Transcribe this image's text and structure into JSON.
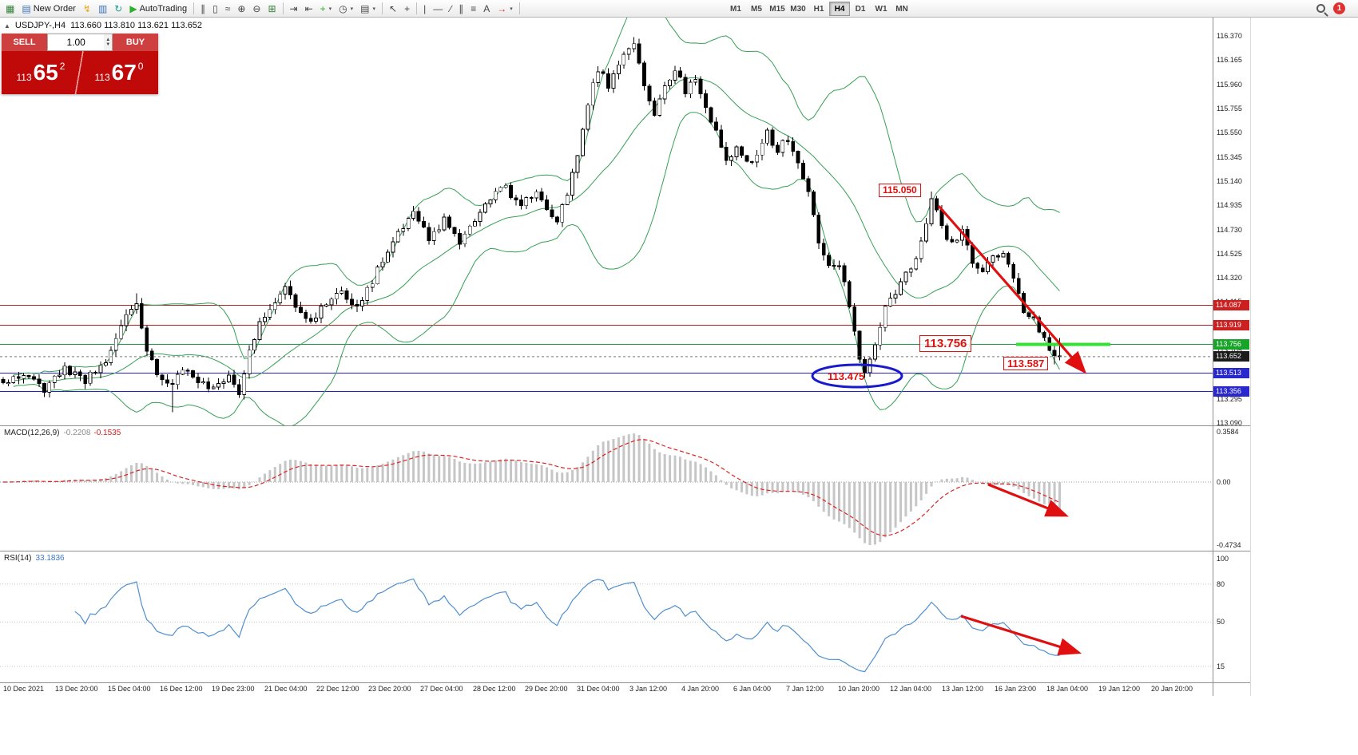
{
  "toolbar": {
    "buttons": [
      {
        "name": "chart-window-icon",
        "glyph": "▦",
        "color": "#2e7d32"
      },
      {
        "name": "new-order-button",
        "glyph": "▤",
        "color": "#3b6fb5",
        "label": "New Order"
      },
      {
        "name": "metaeditor-icon",
        "glyph": "↯",
        "color": "#e6a817"
      },
      {
        "name": "market-watch-icon",
        "glyph": "▥",
        "color": "#3b6fb5"
      },
      {
        "name": "strategy-tester-icon",
        "glyph": "↻",
        "color": "#1e9e8e"
      },
      {
        "name": "autotrading-button",
        "glyph": "▶",
        "color": "#2eaf2e",
        "label": "AutoTrading"
      },
      {
        "type": "sep"
      },
      {
        "name": "bar-chart-icon",
        "glyph": "∥",
        "color": "#444"
      },
      {
        "name": "candlestick-chart-icon",
        "glyph": "▯",
        "color": "#444"
      },
      {
        "name": "line-chart-icon",
        "glyph": "≈",
        "color": "#444"
      },
      {
        "name": "zoom-in-icon",
        "glyph": "⊕",
        "color": "#444"
      },
      {
        "name": "zoom-out-icon",
        "glyph": "⊖",
        "color": "#444"
      },
      {
        "name": "tile-windows-icon",
        "glyph": "⊞",
        "color": "#2e7d32"
      },
      {
        "type": "sep"
      },
      {
        "name": "auto-scroll-icon",
        "glyph": "⇥",
        "color": "#444"
      },
      {
        "name": "chart-shift-icon",
        "glyph": "⇤",
        "color": "#444"
      },
      {
        "name": "indicators-icon",
        "glyph": "+",
        "color": "#2eaf2e",
        "dropdown": true
      },
      {
        "name": "periods-icon",
        "glyph": "◷",
        "color": "#444",
        "dropdown": true
      },
      {
        "name": "templates-icon",
        "glyph": "▤",
        "color": "#444",
        "dropdown": true
      },
      {
        "type": "sep"
      },
      {
        "name": "cursor-icon",
        "glyph": "↖",
        "color": "#444"
      },
      {
        "name": "crosshair-icon",
        "glyph": "+",
        "color": "#444"
      },
      {
        "type": "sep"
      },
      {
        "name": "vertical-line-icon",
        "glyph": "|",
        "color": "#444"
      },
      {
        "name": "horizontal-line-icon",
        "glyph": "—",
        "color": "#444"
      },
      {
        "name": "trendline-icon",
        "glyph": "∕",
        "color": "#444"
      },
      {
        "name": "channel-icon",
        "glyph": "∥",
        "color": "#444"
      },
      {
        "name": "fibonacci-icon",
        "glyph": "≡",
        "color": "#444"
      },
      {
        "name": "text-icon",
        "glyph": "A",
        "color": "#444"
      },
      {
        "name": "arrows-icon",
        "glyph": "→",
        "color": "#cc3333",
        "dropdown": true
      },
      {
        "type": "sep"
      }
    ],
    "timeframes": [
      "M1",
      "M5",
      "M15",
      "M30",
      "H1",
      "H4",
      "D1",
      "W1",
      "MN"
    ],
    "active_timeframe": "H4",
    "notification_count": "1"
  },
  "chart": {
    "title_symbol": "USDJPY-,H4",
    "title_ohlc": "113.660 113.810 113.621 113.652"
  },
  "trade_panel": {
    "sell_label": "SELL",
    "buy_label": "BUY",
    "volume": "1.00",
    "sell_price": {
      "prefix": "113",
      "big": "65",
      "sup": "2"
    },
    "buy_price": {
      "prefix": "113",
      "big": "67",
      "sup": "0"
    }
  },
  "price_axis": {
    "labels": [
      {
        "text": "116.370",
        "price": 116.37
      },
      {
        "text": "116.165",
        "price": 116.165
      },
      {
        "text": "115.960",
        "price": 115.96
      },
      {
        "text": "115.755",
        "price": 115.755
      },
      {
        "text": "115.550",
        "price": 115.55
      },
      {
        "text": "115.345",
        "price": 115.345
      },
      {
        "text": "115.140",
        "price": 115.14
      },
      {
        "text": "114.935",
        "price": 114.935
      },
      {
        "text": "114.730",
        "price": 114.73
      },
      {
        "text": "114.525",
        "price": 114.525
      },
      {
        "text": "114.320",
        "price": 114.32
      },
      {
        "text": "114.115",
        "price": 114.115
      },
      {
        "text": "113.910",
        "price": 113.91
      },
      {
        "text": "113.705",
        "price": 113.705
      },
      {
        "text": "113.500",
        "price": 113.5
      },
      {
        "text": "113.295",
        "price": 113.295
      },
      {
        "text": "113.090",
        "price": 113.09
      }
    ],
    "tags": [
      {
        "text": "114.087",
        "price": 114.087,
        "color": "#cc2020"
      },
      {
        "text": "113.919",
        "price": 113.919,
        "color": "#cc2020"
      },
      {
        "text": "113.756",
        "price": 113.756,
        "color": "#18a428"
      },
      {
        "text": "113.652",
        "price": 113.652,
        "color": "#1b1b1b"
      },
      {
        "text": "113.513",
        "price": 113.513,
        "color": "#2828cc"
      },
      {
        "text": "113.356",
        "price": 113.356,
        "color": "#2828cc"
      }
    ]
  },
  "hlines": [
    {
      "price": 114.087,
      "color": "#b22222"
    },
    {
      "price": 113.919,
      "color": "#b22222"
    },
    {
      "price": 113.756,
      "color": "#229a4d"
    },
    {
      "price": 113.513,
      "color": "#2323c8"
    },
    {
      "price": 113.356,
      "color": "#2323c8"
    }
  ],
  "annotations": {
    "peak": {
      "text": "115.050"
    },
    "level": {
      "text": "113.756"
    },
    "low": {
      "text": "113.587"
    },
    "circled": {
      "text": "113.475"
    }
  },
  "macd": {
    "name": "MACD(12,26,9)",
    "main_value": "-0.2208",
    "signal_value": "-0.1535",
    "axis": [
      "0.3584",
      "0.00",
      "-0.4734"
    ]
  },
  "rsi": {
    "name": "RSI(14)",
    "value": "33.1836",
    "axis": [
      "100",
      "80",
      "50",
      "15"
    ]
  },
  "time_axis": [
    "10 Dec 2021",
    "13 Dec 20:00",
    "15 Dec 04:00",
    "16 Dec 12:00",
    "19 Dec 23:00",
    "21 Dec 04:00",
    "22 Dec 12:00",
    "23 Dec 20:00",
    "27 Dec 04:00",
    "28 Dec 12:00",
    "29 Dec 20:00",
    "31 Dec 04:00",
    "3 Jan 12:00",
    "4 Jan 20:00",
    "6 Jan 04:00",
    "7 Jan 12:00",
    "10 Jan 20:00",
    "12 Jan 04:00",
    "13 Jan 12:00",
    "16 Jan 23:00",
    "18 Jan 04:00",
    "19 Jan 12:00",
    "20 Jan 20:00"
  ],
  "chart_data": {
    "type": "candlestick",
    "symbol": "USDJPY",
    "timeframe": "H4",
    "visible_price_range": [
      113.09,
      116.37
    ],
    "last_candle": {
      "open": 113.66,
      "high": 113.81,
      "low": 113.621,
      "close": 113.652
    },
    "key_levels": {
      "resistance": [
        114.087,
        113.919
      ],
      "pivot": 113.756,
      "support": [
        113.513,
        113.356
      ]
    },
    "annotated_points": [
      {
        "label": "115.050",
        "type": "swing-high"
      },
      {
        "label": "113.756",
        "type": "level"
      },
      {
        "label": "113.587",
        "type": "swing-low"
      },
      {
        "label": "113.475",
        "type": "circled-low"
      }
    ],
    "candle_count": 207,
    "close_anchors": [
      [
        0,
        113.42
      ],
      [
        4,
        113.5
      ],
      [
        8,
        113.38
      ],
      [
        12,
        113.55
      ],
      [
        16,
        113.46
      ],
      [
        20,
        113.58
      ],
      [
        22,
        113.82
      ],
      [
        24,
        114.0
      ],
      [
        26,
        114.1
      ],
      [
        28,
        113.72
      ],
      [
        30,
        113.5
      ],
      [
        33,
        113.44
      ],
      [
        36,
        113.55
      ],
      [
        40,
        113.38
      ],
      [
        44,
        113.5
      ],
      [
        46,
        113.36
      ],
      [
        48,
        113.7
      ],
      [
        50,
        113.92
      ],
      [
        53,
        114.08
      ],
      [
        55,
        114.28
      ],
      [
        57,
        114.1
      ],
      [
        60,
        113.96
      ],
      [
        63,
        114.1
      ],
      [
        66,
        114.22
      ],
      [
        69,
        114.08
      ],
      [
        72,
        114.3
      ],
      [
        75,
        114.55
      ],
      [
        78,
        114.75
      ],
      [
        80,
        114.85
      ],
      [
        83,
        114.65
      ],
      [
        86,
        114.8
      ],
      [
        89,
        114.62
      ],
      [
        92,
        114.8
      ],
      [
        95,
        115.0
      ],
      [
        98,
        115.08
      ],
      [
        101,
        114.94
      ],
      [
        104,
        115.05
      ],
      [
        106,
        114.9
      ],
      [
        108,
        114.78
      ],
      [
        110,
        115.05
      ],
      [
        112,
        115.35
      ],
      [
        114,
        115.8
      ],
      [
        116,
        116.1
      ],
      [
        118,
        115.95
      ],
      [
        120,
        116.15
      ],
      [
        122,
        116.28
      ],
      [
        123,
        116.33
      ],
      [
        125,
        115.95
      ],
      [
        127,
        115.7
      ],
      [
        129,
        115.95
      ],
      [
        131,
        116.08
      ],
      [
        133,
        115.9
      ],
      [
        135,
        116.0
      ],
      [
        137,
        115.75
      ],
      [
        139,
        115.55
      ],
      [
        141,
        115.3
      ],
      [
        143,
        115.45
      ],
      [
        145,
        115.28
      ],
      [
        147,
        115.35
      ],
      [
        149,
        115.55
      ],
      [
        151,
        115.4
      ],
      [
        153,
        115.5
      ],
      [
        155,
        115.3
      ],
      [
        157,
        115.05
      ],
      [
        159,
        114.6
      ],
      [
        161,
        114.4
      ],
      [
        163,
        114.42
      ],
      [
        165,
        114.1
      ],
      [
        167,
        113.65
      ],
      [
        168,
        113.52
      ],
      [
        170,
        113.75
      ],
      [
        172,
        114.08
      ],
      [
        174,
        114.2
      ],
      [
        176,
        114.35
      ],
      [
        178,
        114.5
      ],
      [
        180,
        114.8
      ],
      [
        181,
        115.0
      ],
      [
        183,
        114.75
      ],
      [
        185,
        114.6
      ],
      [
        187,
        114.7
      ],
      [
        189,
        114.45
      ],
      [
        191,
        114.35
      ],
      [
        193,
        114.5
      ],
      [
        195,
        114.55
      ],
      [
        197,
        114.3
      ],
      [
        199,
        114.05
      ],
      [
        201,
        113.95
      ],
      [
        203,
        113.8
      ],
      [
        205,
        113.66
      ],
      [
        206,
        113.652
      ]
    ],
    "close_overrides": [
      [
        205,
        113.66
      ],
      [
        206,
        113.652
      ]
    ],
    "wick_overrides": [
      {
        "i": 26,
        "high": 114.19
      },
      {
        "i": 33,
        "low": 113.18
      },
      {
        "i": 123,
        "high": 116.36
      },
      {
        "i": 168,
        "low": 113.475
      },
      {
        "i": 181,
        "high": 115.05
      },
      {
        "i": 205,
        "low": 113.587
      },
      {
        "i": 206,
        "low": 113.621,
        "high": 113.81
      }
    ],
    "indicators": {
      "bollinger": {
        "period": 20,
        "deviation": 2,
        "color": "#35a053"
      },
      "macd": {
        "fast": 12,
        "slow": 26,
        "signal": 9,
        "main": -0.2208,
        "signal_value": -0.1535,
        "scale_max": 0.3584,
        "scale_min": -0.4734
      },
      "rsi": {
        "period": 14,
        "value": 33.1836,
        "levels": [
          80,
          50,
          15
        ]
      }
    }
  }
}
